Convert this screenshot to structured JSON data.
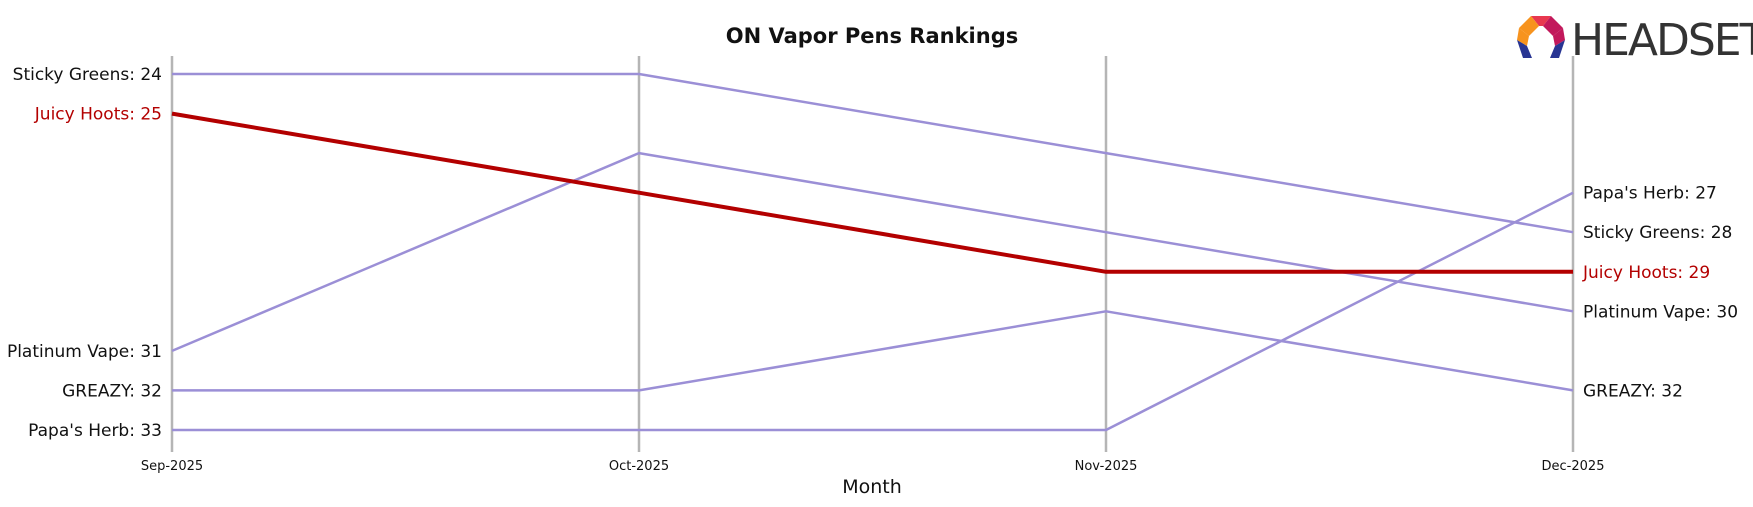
{
  "chart_data": {
    "type": "line",
    "title": "ON Vapor Pens Rankings",
    "xlabel": "Month",
    "ylabel": "",
    "categories": [
      "Sep-2025",
      "Oct-2025",
      "Nov-2025",
      "Dec-2025"
    ],
    "y_inverted": true,
    "ylim": [
      33,
      24
    ],
    "grid": "vertical lines at each month",
    "highlight_color": "#b30000",
    "default_color": "#9b8fd6",
    "series": [
      {
        "name": "Sticky Greens",
        "values": [
          24,
          24,
          26,
          28
        ],
        "highlight": false
      },
      {
        "name": "Juicy Hoots",
        "values": [
          25,
          27,
          29,
          29
        ],
        "highlight": true
      },
      {
        "name": "Platinum Vape",
        "values": [
          31,
          26,
          28,
          30
        ],
        "highlight": false
      },
      {
        "name": "GREAZY",
        "values": [
          32,
          32,
          30,
          32
        ],
        "highlight": false
      },
      {
        "name": "Papa's Herb",
        "values": [
          33,
          33,
          33,
          27
        ],
        "highlight": false
      }
    ],
    "start_labels": [
      "Sticky Greens: 24",
      "Juicy Hoots: 25",
      "Platinum Vape: 31",
      "GREAZY: 32",
      "Papa's Herb: 33"
    ],
    "end_labels": [
      "Papa's Herb: 27",
      "Sticky Greens: 28",
      "Juicy Hoots: 29",
      "Platinum Vape: 30",
      "GREAZY: 32"
    ]
  },
  "logo": {
    "text": "HEADSET",
    "colors": [
      "#e8384f",
      "#f7931e",
      "#c2185b",
      "#283593"
    ]
  }
}
